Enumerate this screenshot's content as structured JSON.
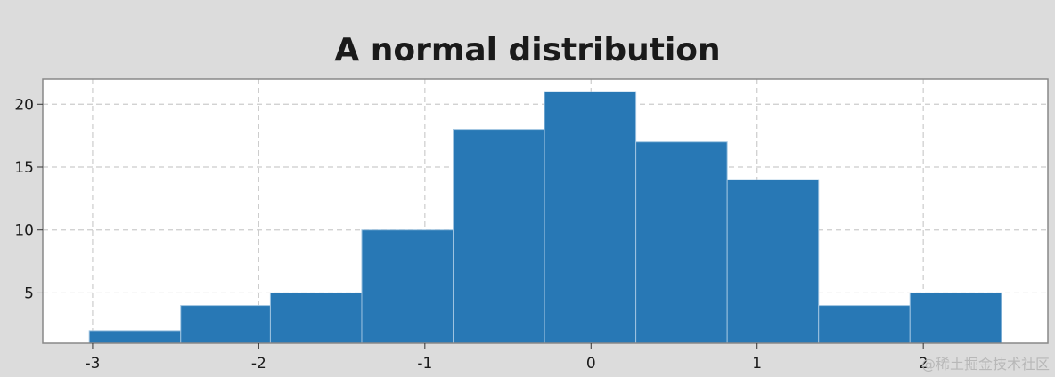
{
  "chart_data": {
    "type": "bar",
    "title": "A normal distribution",
    "xlabel": "",
    "ylabel": "",
    "bin_edges": [
      -3.02,
      -2.47,
      -1.93,
      -1.38,
      -0.83,
      -0.28,
      0.27,
      0.82,
      1.37,
      1.92,
      2.47
    ],
    "values": [
      2,
      4,
      5,
      10,
      18,
      21,
      17,
      14,
      4,
      5
    ],
    "xlim": [
      -3.3,
      2.75
    ],
    "ylim": [
      1,
      22
    ],
    "xticks": [
      -3,
      -2,
      -1,
      0,
      1,
      2
    ],
    "yticks": [
      5,
      10,
      15,
      20
    ],
    "grid": true,
    "colors": {
      "bar": "#2878b5",
      "bar_edge": "#9ec3e0",
      "grid": "#cccccc",
      "axes": "#888888",
      "plot_bg": "#ffffff"
    }
  },
  "watermark": "@稀土掘金技术社区"
}
